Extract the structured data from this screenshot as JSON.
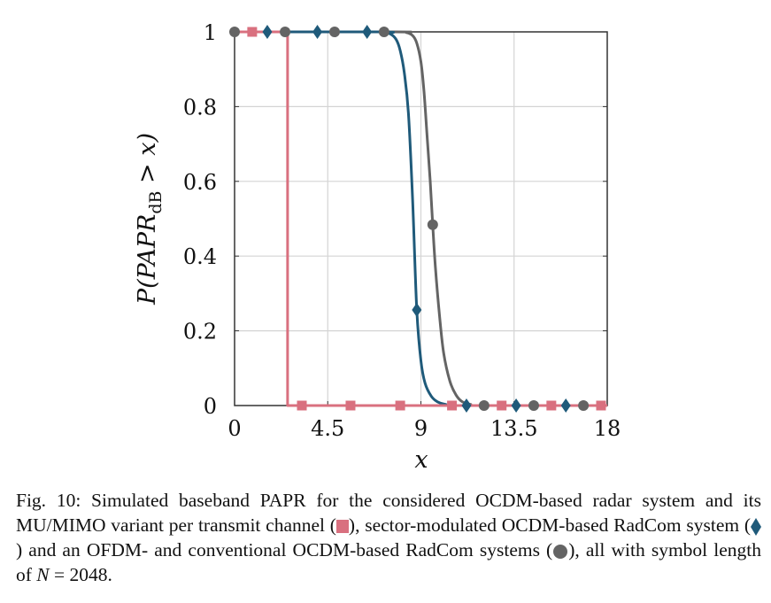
{
  "chart_data": {
    "type": "line",
    "title": "",
    "xlabel": "x",
    "ylabel": "P(PAPR_dB > x)",
    "ylabel_parts": {
      "main": "P(PAPR",
      "sub": "dB",
      "tail": " > x)"
    },
    "xlim": [
      0,
      18
    ],
    "ylim": [
      0,
      1
    ],
    "xticks": [
      0,
      4.5,
      9,
      13.5,
      18
    ],
    "xtick_labels": [
      "0",
      "4.5",
      "9",
      "13.5",
      "18"
    ],
    "yticks": [
      0,
      0.2,
      0.4,
      0.6,
      0.8,
      1
    ],
    "ytick_labels": [
      "0",
      "0.2",
      "0.4",
      "0.6",
      "0.8",
      "1"
    ],
    "grid": true,
    "legend": "none (legend symbols described in caption)",
    "series": [
      {
        "name": "OCDM-based radar and MU/MIMO variant per transmit channel",
        "marker": "square",
        "color": "#d9707f",
        "x": [
          0,
          2.56,
          2.56,
          18
        ],
        "y": [
          1,
          1,
          0,
          0
        ],
        "marker_points": [
          [
            0.85,
            1
          ],
          [
            3.25,
            0
          ],
          [
            5.6,
            0
          ],
          [
            8.0,
            0
          ],
          [
            10.5,
            0
          ],
          [
            12.9,
            0
          ],
          [
            15.3,
            0
          ],
          [
            17.7,
            0
          ]
        ]
      },
      {
        "name": "Sector-modulated OCDM-based RadCom system",
        "marker": "diamond",
        "color": "#1f5a7a",
        "x": [
          0,
          7.0,
          7.5,
          7.8,
          8.0,
          8.2,
          8.4,
          8.6,
          8.8,
          9.0,
          9.2,
          9.5,
          9.8,
          10.2,
          10.6,
          18
        ],
        "y": [
          1,
          1,
          0.995,
          0.98,
          0.95,
          0.89,
          0.78,
          0.55,
          0.256,
          0.12,
          0.06,
          0.025,
          0.01,
          0.003,
          0,
          0
        ],
        "marker_points": [
          [
            1.58,
            1
          ],
          [
            4.0,
            1
          ],
          [
            6.4,
            1
          ],
          [
            8.8,
            0.256
          ],
          [
            11.2,
            0
          ],
          [
            13.6,
            0
          ],
          [
            16.0,
            0
          ]
        ]
      },
      {
        "name": "OFDM- and conventional OCDM-based RadCom systems",
        "marker": "circle",
        "color": "#646464",
        "x": [
          0,
          7.8,
          8.3,
          8.6,
          8.8,
          9.0,
          9.15,
          9.3,
          9.45,
          9.57,
          9.7,
          9.9,
          10.1,
          10.4,
          10.7,
          11.0,
          11.4,
          11.8,
          18
        ],
        "y": [
          1,
          1,
          0.998,
          0.99,
          0.97,
          0.92,
          0.84,
          0.72,
          0.6,
          0.484,
          0.37,
          0.24,
          0.14,
          0.065,
          0.028,
          0.01,
          0.003,
          0,
          0
        ],
        "marker_points": [
          [
            0,
            1
          ],
          [
            2.44,
            1
          ],
          [
            4.83,
            1
          ],
          [
            7.22,
            1
          ],
          [
            9.57,
            0.484
          ],
          [
            12.05,
            0
          ],
          [
            14.45,
            0
          ],
          [
            16.85,
            0
          ]
        ]
      }
    ]
  },
  "caption": {
    "part1": "Fig. 10: Simulated baseband PAPR for the considered OCDM-based radar system and its MU/MIMO variant per transmit channel (",
    "part2": "), sector-modulated OCDM-based RadCom system (",
    "part3": ") and an OFDM- and conventional OCDM-based RadCom systems (",
    "part4": "), all with symbol length of ",
    "math_var": "N",
    "math_rest": " = 2048."
  }
}
